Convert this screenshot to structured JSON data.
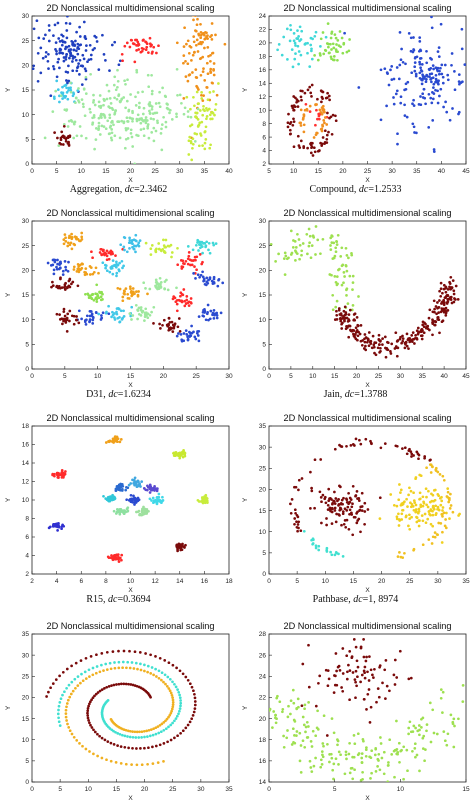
{
  "chart_data": [
    {
      "type": "scatter",
      "title": "2D Nonclassical multidimensional scaling",
      "xlabel": "X",
      "ylabel": "Y",
      "xlim": [
        0,
        40
      ],
      "ylim": [
        0,
        30
      ],
      "xticks": [
        0,
        5,
        10,
        15,
        20,
        25,
        30,
        35,
        40
      ],
      "yticks": [
        0,
        5,
        10,
        15,
        20,
        25,
        30
      ],
      "caption": {
        "name": "Aggregation, ",
        "dc_label": "dc",
        "value": "=2.3462"
      },
      "clusters": [
        {
          "color": "#1f3fbf",
          "cx": 8,
          "cy": 23,
          "sx": 3.5,
          "sy": 3.3,
          "n": 150
        },
        {
          "color": "#ff2a2a",
          "cx": 22,
          "cy": 23.8,
          "sx": 1.9,
          "sy": 1.0,
          "n": 40
        },
        {
          "color": "#f0901a",
          "cx": 34,
          "cy": 22,
          "sx": 1.9,
          "sy": 5.4,
          "n": 110
        },
        {
          "color": "#40c8e8",
          "cx": 6.5,
          "cy": 14.5,
          "sx": 1.3,
          "sy": 1.0,
          "n": 30
        },
        {
          "color": "#9ee89e",
          "cx": 18,
          "cy": 10.5,
          "sx": 6.2,
          "sy": 3.4,
          "n": 260
        },
        {
          "color": "#c8ec3c",
          "cx": 34.5,
          "cy": 9.5,
          "sx": 1.8,
          "sy": 3.8,
          "n": 70
        },
        {
          "color": "#7a0a0a",
          "cx": 6.5,
          "cy": 5,
          "sx": 1.1,
          "sy": 0.9,
          "n": 25
        }
      ]
    },
    {
      "type": "scatter",
      "title": "2D Nonclassical multidimensional scaling",
      "xlabel": "X",
      "ylabel": "Y",
      "xlim": [
        5,
        45
      ],
      "ylim": [
        2,
        24
      ],
      "xticks": [
        5,
        10,
        15,
        20,
        25,
        30,
        35,
        40,
        45
      ],
      "yticks": [
        2,
        4,
        6,
        8,
        10,
        12,
        14,
        16,
        18,
        20,
        22,
        24
      ],
      "caption": {
        "name": "Compound, ",
        "dc_label": "dc",
        "value": "=1.2533"
      },
      "clusters": [
        {
          "color": "#40d8d8",
          "cx": 11,
          "cy": 19.5,
          "sx": 1.9,
          "sy": 1.6,
          "n": 45
        },
        {
          "color": "#8ee050",
          "cx": 18,
          "cy": 19.5,
          "sx": 1.4,
          "sy": 1.7,
          "n": 45
        },
        {
          "color": "#2a4ad0",
          "cx": 37,
          "cy": 15,
          "sx": 2.3,
          "sy": 2.3,
          "n": 90
        },
        {
          "color": "#2a4ad0",
          "cx": 36,
          "cy": 14,
          "sx": 5.5,
          "sy": 5.2,
          "n": 90
        },
        {
          "color": "#ff3030",
          "cx": 15,
          "cy": 9.5,
          "sx": 0.9,
          "sy": 0.6,
          "n": 12
        }
      ],
      "rings": [
        {
          "color": "#7a0a0a",
          "cx": 13.5,
          "cy": 8.5,
          "r": 4.4,
          "n": 85
        },
        {
          "color": "#f09020",
          "cx": 14,
          "cy": 8.5,
          "r": 2.5,
          "n": 40
        }
      ]
    },
    {
      "type": "scatter",
      "title": "2D Nonclassical multidimensional scaling",
      "xlabel": "X",
      "ylabel": "Y",
      "xlim": [
        0,
        30
      ],
      "ylim": [
        0,
        30
      ],
      "xticks": [
        0,
        5,
        10,
        15,
        20,
        25,
        30
      ],
      "yticks": [
        0,
        5,
        10,
        15,
        20,
        25,
        30
      ],
      "caption": {
        "name": "D31, ",
        "dc_label": "dc",
        "value": "=1.6234"
      },
      "clusters": [
        {
          "color": "#f0a01a",
          "cx": 6,
          "cy": 26.5,
          "sx": 0.9,
          "sy": 0.8,
          "n": 28
        },
        {
          "color": "#ff2a2a",
          "cx": 11,
          "cy": 23.5,
          "sx": 0.9,
          "sy": 0.8,
          "n": 28
        },
        {
          "color": "#40c0e8",
          "cx": 15,
          "cy": 25.5,
          "sx": 0.9,
          "sy": 0.8,
          "n": 28
        },
        {
          "color": "#c8ec3c",
          "cx": 20,
          "cy": 24.5,
          "sx": 0.9,
          "sy": 0.8,
          "n": 28
        },
        {
          "color": "#40d8d8",
          "cx": 26,
          "cy": 25,
          "sx": 0.9,
          "sy": 0.8,
          "n": 28
        },
        {
          "color": "#2a4ad0",
          "cx": 4,
          "cy": 21,
          "sx": 0.8,
          "sy": 0.8,
          "n": 28
        },
        {
          "color": "#f0a01a",
          "cx": 8,
          "cy": 20,
          "sx": 0.9,
          "sy": 0.8,
          "n": 28
        },
        {
          "color": "#40c8e8",
          "cx": 13,
          "cy": 20.5,
          "sx": 0.9,
          "sy": 0.8,
          "n": 28
        },
        {
          "color": "#ff2a2a",
          "cx": 24,
          "cy": 21.5,
          "sx": 0.9,
          "sy": 0.8,
          "n": 28
        },
        {
          "color": "#7a0a0a",
          "cx": 5,
          "cy": 17,
          "sx": 0.9,
          "sy": 0.8,
          "n": 28
        },
        {
          "color": "#8ee050",
          "cx": 10,
          "cy": 15,
          "sx": 0.9,
          "sy": 0.8,
          "n": 28
        },
        {
          "color": "#f0a01a",
          "cx": 15,
          "cy": 15.5,
          "sx": 0.9,
          "sy": 0.8,
          "n": 28
        },
        {
          "color": "#9ee89e",
          "cx": 19,
          "cy": 17,
          "sx": 0.9,
          "sy": 0.8,
          "n": 28
        },
        {
          "color": "#2a4ad0",
          "cx": 27,
          "cy": 18,
          "sx": 0.9,
          "sy": 0.8,
          "n": 28
        },
        {
          "color": "#2a4ad0",
          "cx": 9,
          "cy": 10.5,
          "sx": 0.9,
          "sy": 0.8,
          "n": 28
        },
        {
          "color": "#ff2a2a",
          "cx": 23,
          "cy": 14,
          "sx": 0.9,
          "sy": 0.8,
          "n": 28
        },
        {
          "color": "#7a0a0a",
          "cx": 5.5,
          "cy": 10,
          "sx": 0.9,
          "sy": 0.8,
          "n": 28
        },
        {
          "color": "#40c8e8",
          "cx": 13,
          "cy": 11,
          "sx": 0.9,
          "sy": 0.8,
          "n": 28
        },
        {
          "color": "#9ee89e",
          "cx": 17,
          "cy": 11,
          "sx": 0.9,
          "sy": 0.8,
          "n": 28
        },
        {
          "color": "#2a4ad0",
          "cx": 27,
          "cy": 11,
          "sx": 0.9,
          "sy": 0.8,
          "n": 28
        },
        {
          "color": "#7a0a0a",
          "cx": 21,
          "cy": 9,
          "sx": 0.9,
          "sy": 0.8,
          "n": 28
        },
        {
          "color": "#2a4ad0",
          "cx": 24,
          "cy": 7,
          "sx": 0.9,
          "sy": 0.8,
          "n": 28
        }
      ]
    },
    {
      "type": "scatter",
      "title": "2D Nonclassical multidimensional scaling",
      "xlabel": "X",
      "ylabel": "Y",
      "xlim": [
        0,
        45
      ],
      "ylim": [
        0,
        30
      ],
      "xticks": [
        0,
        5,
        10,
        15,
        20,
        25,
        30,
        35,
        40,
        45
      ],
      "yticks": [
        0,
        5,
        10,
        15,
        20,
        25,
        30
      ],
      "caption": {
        "name": "Jain, ",
        "dc_label": "dc",
        "value": "=1.3788"
      },
      "curves": [
        {
          "color": "#9ee050",
          "n": 100,
          "spread": 1.5,
          "path": [
            [
              2,
              21
            ],
            [
              6,
              24
            ],
            [
              11,
              27
            ],
            [
              15,
              25
            ],
            [
              17,
              22
            ],
            [
              17,
              17
            ],
            [
              16,
              13
            ]
          ]
        },
        {
          "color": "#7a0a0a",
          "n": 280,
          "spread": 1.0,
          "path": [
            [
              16,
              12
            ],
            [
              19,
              8
            ],
            [
              23,
              5
            ],
            [
              28,
              4.5
            ],
            [
              33,
              6
            ],
            [
              38,
              10
            ],
            [
              41,
              14
            ],
            [
              41,
              17
            ]
          ]
        }
      ]
    },
    {
      "type": "scatter",
      "title": "2D Nonclassical multidimensional scaling",
      "xlabel": "X",
      "ylabel": "Y",
      "xlim": [
        2,
        18
      ],
      "ylim": [
        2,
        18
      ],
      "xticks": [
        2,
        4,
        6,
        8,
        10,
        12,
        14,
        16,
        18
      ],
      "yticks": [
        2,
        4,
        6,
        8,
        10,
        12,
        14,
        16,
        18
      ],
      "caption": {
        "name": "R15, ",
        "dc_label": "dc",
        "value": "=0.3694"
      },
      "clusters": [
        {
          "color": "#f0a01a",
          "cx": 8.7,
          "cy": 16.5,
          "sx": 0.25,
          "sy": 0.2,
          "n": 30
        },
        {
          "color": "#c8e830",
          "cx": 14,
          "cy": 15,
          "sx": 0.25,
          "sy": 0.2,
          "n": 30
        },
        {
          "color": "#ff2a2a",
          "cx": 4.3,
          "cy": 12.8,
          "sx": 0.25,
          "sy": 0.25,
          "n": 30
        },
        {
          "color": "#c8ec3c",
          "cx": 16,
          "cy": 10,
          "sx": 0.22,
          "sy": 0.22,
          "n": 30
        },
        {
          "color": "#3030d0",
          "cx": 4,
          "cy": 7.2,
          "sx": 0.25,
          "sy": 0.2,
          "n": 30
        },
        {
          "color": "#ff2a2a",
          "cx": 8.8,
          "cy": 3.8,
          "sx": 0.25,
          "sy": 0.2,
          "n": 30
        },
        {
          "color": "#7a0a0a",
          "cx": 14,
          "cy": 5,
          "sx": 0.25,
          "sy": 0.2,
          "n": 30
        },
        {
          "color": "#2a6ad0",
          "cx": 9.2,
          "cy": 11.3,
          "sx": 0.25,
          "sy": 0.2,
          "n": 30
        },
        {
          "color": "#40a8e0",
          "cx": 10.5,
          "cy": 11.8,
          "sx": 0.25,
          "sy": 0.2,
          "n": 30
        },
        {
          "color": "#5a4ad0",
          "cx": 11.7,
          "cy": 11.2,
          "sx": 0.25,
          "sy": 0.2,
          "n": 30
        },
        {
          "color": "#30c8d8",
          "cx": 8.5,
          "cy": 10.2,
          "sx": 0.25,
          "sy": 0.2,
          "n": 30
        },
        {
          "color": "#2a4ad0",
          "cx": 10.3,
          "cy": 10,
          "sx": 0.25,
          "sy": 0.2,
          "n": 30
        },
        {
          "color": "#40d8e8",
          "cx": 12.2,
          "cy": 10,
          "sx": 0.25,
          "sy": 0.2,
          "n": 30
        },
        {
          "color": "#8ee0a0",
          "cx": 9.2,
          "cy": 8.8,
          "sx": 0.25,
          "sy": 0.2,
          "n": 30
        },
        {
          "color": "#9ee09e",
          "cx": 11,
          "cy": 8.7,
          "sx": 0.25,
          "sy": 0.2,
          "n": 30
        }
      ]
    },
    {
      "type": "scatter",
      "title": "2D Nonclassical multidimensional scaling",
      "xlabel": "X",
      "ylabel": "Y",
      "xlim": [
        0,
        35
      ],
      "ylim": [
        0,
        35
      ],
      "xticks": [
        0,
        5,
        10,
        15,
        20,
        25,
        30,
        35
      ],
      "yticks": [
        0,
        5,
        10,
        15,
        20,
        25,
        30,
        35
      ],
      "caption": {
        "name": "Pathbase, ",
        "dc_label": "dc",
        "value": "=1, 8974"
      },
      "clusters": [
        {
          "color": "#7a0a0a",
          "cx": 13,
          "cy": 16,
          "sx": 2.4,
          "sy": 2.4,
          "n": 110
        },
        {
          "color": "#f0d020",
          "cx": 27,
          "cy": 16,
          "sx": 2.6,
          "sy": 2.8,
          "n": 130
        }
      ],
      "arcs": [
        {
          "color": "#7a0a0a",
          "cx": 18,
          "cy": 17,
          "r": 14,
          "a0": 40,
          "a1": 210,
          "n": 60
        },
        {
          "color": "#40e0d0",
          "cx": 18,
          "cy": 17,
          "r": 14,
          "a0": 210,
          "a1": 250,
          "n": 20
        },
        {
          "color": "#f0c020",
          "cx": 18,
          "cy": 17,
          "r": 14,
          "a0": -70,
          "a1": 40,
          "n": 45
        }
      ]
    },
    {
      "type": "scatter",
      "title": "2D Nonclassical multidimensional scaling",
      "xlabel": "X",
      "ylabel": "Y",
      "xlim": [
        0,
        35
      ],
      "ylim": [
        0,
        35
      ],
      "xticks": [
        0,
        5,
        10,
        15,
        20,
        25,
        30,
        35
      ],
      "yticks": [
        0,
        5,
        10,
        15,
        20,
        25,
        30,
        35
      ],
      "caption": null,
      "spirals": [
        {
          "color": "#7a0a0a",
          "n": 120,
          "a0": 3.5,
          "a1": 12.2,
          "scale": 1.25,
          "phase": 3.4
        },
        {
          "color": "#f0b020",
          "n": 110,
          "a0": 3.5,
          "a1": 11.2,
          "scale": 1.25,
          "phase": 0.3
        },
        {
          "color": "#40e0d0",
          "n": 100,
          "a0": 3.5,
          "a1": 10.6,
          "scale": 1.25,
          "phase": 5.5
        }
      ]
    },
    {
      "type": "scatter",
      "title": "2D Nonclassical multidimensional scaling",
      "xlabel": "X",
      "ylabel": "Y",
      "xlim": [
        0,
        15
      ],
      "ylim": [
        14,
        28
      ],
      "xticks": [
        0,
        5,
        10,
        15
      ],
      "yticks": [
        14,
        16,
        18,
        20,
        22,
        24,
        26,
        28
      ],
      "caption": null,
      "clusters": [
        {
          "color": "#7a0a0a",
          "cx": 7,
          "cy": 24,
          "sx": 1.8,
          "sy": 1.7,
          "n": 90
        }
      ],
      "bands": [
        {
          "color": "#9ee050",
          "n": 230,
          "path": [
            [
              0.5,
              22
            ],
            [
              2,
              19
            ],
            [
              4,
              17
            ],
            [
              7,
              15.5
            ],
            [
              10,
              16.5
            ],
            [
              12,
              18.5
            ],
            [
              14.5,
              22
            ]
          ],
          "spread": 1.2
        }
      ]
    }
  ]
}
